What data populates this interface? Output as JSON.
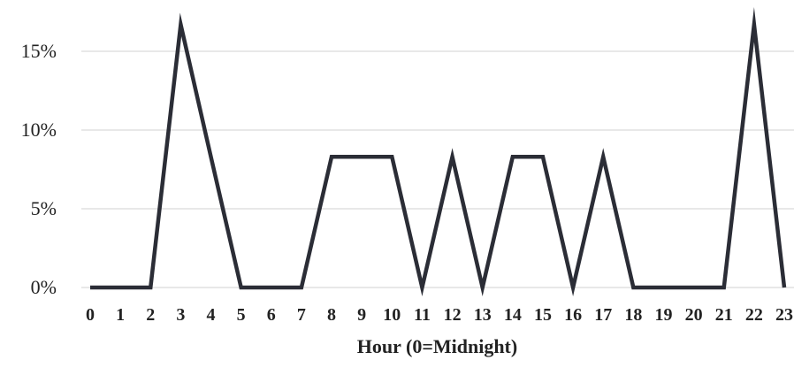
{
  "chart_data": {
    "type": "line",
    "title": "",
    "xlabel": "Hour (0=Midnight)",
    "ylabel": "",
    "x": [
      0,
      1,
      2,
      3,
      4,
      5,
      6,
      7,
      8,
      9,
      10,
      11,
      12,
      13,
      14,
      15,
      16,
      17,
      18,
      19,
      20,
      21,
      22,
      23
    ],
    "x_tick_labels": [
      "0",
      "1",
      "2",
      "3",
      "4",
      "5",
      "6",
      "7",
      "8",
      "9",
      "10",
      "11",
      "12",
      "13",
      "14",
      "15",
      "16",
      "17",
      "18",
      "19",
      "20",
      "21",
      "22",
      "23"
    ],
    "series": [
      {
        "values": [
          0,
          0,
          0,
          16.7,
          8.3,
          0,
          0,
          0,
          8.3,
          8.3,
          8.3,
          0,
          8.3,
          0,
          8.3,
          8.3,
          0,
          8.3,
          0,
          0,
          0,
          0,
          16.7,
          0
        ]
      }
    ],
    "ylim": [
      0,
      15
    ],
    "y_ticks": [
      0,
      5,
      10,
      15
    ],
    "y_tick_labels": [
      "0%",
      "5%",
      "10%",
      "15%"
    ],
    "grid": "horizontal",
    "legend": "none",
    "colors": {
      "line": "#2b2d36",
      "grid": "#d9d9d9",
      "text": "#222222"
    }
  }
}
